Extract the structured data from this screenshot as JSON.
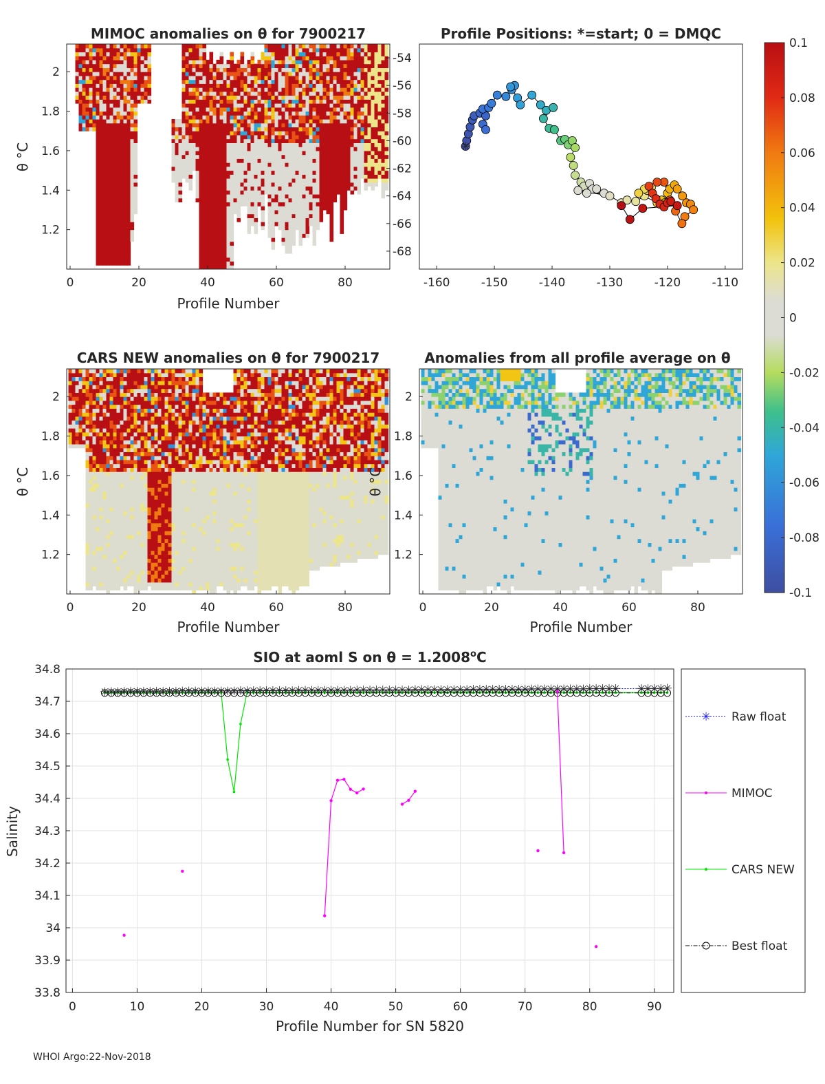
{
  "float_id": "7900217",
  "footer": "WHOI Argo:22-Nov-2018",
  "colorbar": {
    "ticks": [
      "0.1",
      "0.08",
      "0.06",
      "0.04",
      "0.02",
      "0",
      "-0.02",
      "-0.04",
      "-0.06",
      "-0.08",
      "-0.1"
    ],
    "min": -0.1,
    "max": 0.1,
    "colormap": "parula-like (blue-cyan-green-yellow-orange-red, gray center)"
  },
  "panels": {
    "mimoc": {
      "title": "MIMOC anomalies on θ  for 7900217",
      "xlabel": "Profile Number",
      "ylabel": "θ °C",
      "xticks": [
        "0",
        "20",
        "40",
        "60",
        "80"
      ],
      "yticks": [
        "2",
        "1.8",
        "1.6",
        "1.4",
        "1.2"
      ],
      "right_yticks": [
        "-54",
        "-56",
        "-58",
        "-60",
        "-62",
        "-64",
        "-66",
        "-68"
      ]
    },
    "positions": {
      "title": "Profile Positions: *=start; 0 = DMQC",
      "xticks": [
        "-160",
        "-150",
        "-140",
        "-130",
        "-120",
        "-110"
      ]
    },
    "cars": {
      "title": "CARS NEW anomalies on θ for 7900217",
      "xlabel": "Profile Number",
      "ylabel": "θ °C",
      "xticks": [
        "0",
        "20",
        "40",
        "60",
        "80"
      ],
      "yticks": [
        "2",
        "1.8",
        "1.6",
        "1.4",
        "1.2"
      ]
    },
    "average": {
      "title": "Anomalies from all profile average on θ",
      "xlabel": "Profile Number",
      "ylabel": "θ °C",
      "xticks": [
        "0",
        "20",
        "40",
        "60",
        "80"
      ],
      "yticks": [
        "2",
        "1.8",
        "1.6",
        "1.4",
        "1.2"
      ]
    },
    "salinity": {
      "title_prefix": "SIO at aoml S on θ = 1.2008",
      "title_sup": "o",
      "title_suffix": "C",
      "xlabel": "Profile Number for SN 5820",
      "ylabel": "Salinity",
      "xticks": [
        "0",
        "10",
        "20",
        "30",
        "40",
        "50",
        "60",
        "70",
        "80",
        "90"
      ],
      "yticks": [
        "34.8",
        "34.7",
        "34.6",
        "34.5",
        "34.4",
        "34.3",
        "34.2",
        "34.1",
        "34",
        "33.9",
        "33.8"
      ],
      "legend": [
        "Raw float",
        "MIMOC",
        "CARS NEW",
        "Best float"
      ]
    }
  },
  "chart_data": [
    {
      "type": "heatmap",
      "title": "MIMOC anomalies on θ  for 7900217",
      "xlabel": "Profile Number",
      "ylabel": "θ °C",
      "xlim": [
        -1,
        93
      ],
      "ylim": [
        1.0,
        2.14
      ],
      "right_ylim": [
        -69.3,
        -53.0
      ],
      "cmap_range": [
        -0.1,
        0.1
      ]
    },
    {
      "type": "scatter",
      "title": "Profile Positions: *=start; 0 = DMQC",
      "xlim": [
        -163,
        -107
      ],
      "ylim": [
        -69.3,
        -53.0
      ],
      "points": [
        [
          -155,
          -60.4
        ],
        [
          -154.8,
          -60
        ],
        [
          -154.5,
          -59.5
        ],
        [
          -154.2,
          -59
        ],
        [
          -153.8,
          -58.5
        ],
        [
          -153.5,
          -58.2
        ],
        [
          -152.5,
          -58
        ],
        [
          -151.5,
          -58.2
        ],
        [
          -152,
          -58.8
        ],
        [
          -151.5,
          -59.2
        ],
        [
          -152,
          -57.7
        ],
        [
          -151,
          -57.6
        ],
        [
          -150.5,
          -57.3
        ],
        [
          -149.5,
          -56.7
        ],
        [
          -148,
          -56.8
        ],
        [
          -147,
          -56.3
        ],
        [
          -146.5,
          -56
        ],
        [
          -147.2,
          -56.1
        ],
        [
          -146,
          -56.9
        ],
        [
          -145.5,
          -57.4
        ],
        [
          -143.5,
          -56.7
        ],
        [
          -142,
          -57.4
        ],
        [
          -141,
          -57.8
        ],
        [
          -139.8,
          -57.6
        ],
        [
          -141.5,
          -58.4
        ],
        [
          -140.5,
          -59.1
        ],
        [
          -139.6,
          -59.2
        ],
        [
          -138.5,
          -60
        ],
        [
          -137.8,
          -59.9
        ],
        [
          -137.2,
          -60.3
        ],
        [
          -136.5,
          -60
        ],
        [
          -136,
          -60.5
        ],
        [
          -136.8,
          -61.2
        ],
        [
          -136.3,
          -61.8
        ],
        [
          -136,
          -62.5
        ],
        [
          -135,
          -63
        ],
        [
          -134.5,
          -63.3
        ],
        [
          -133.5,
          -63.1
        ],
        [
          -133,
          -63.5
        ],
        [
          -132.3,
          -63.5
        ],
        [
          -131,
          -63.8
        ],
        [
          -134,
          -63.8
        ],
        [
          -135.5,
          -63.6
        ],
        [
          -130,
          -64
        ],
        [
          -128,
          -64.5
        ],
        [
          -127,
          -64.3
        ],
        [
          -125.5,
          -64.4
        ],
        [
          -124,
          -64
        ],
        [
          -123.5,
          -63.6
        ],
        [
          -122.8,
          -63.4
        ],
        [
          -124,
          -63.5
        ],
        [
          -125,
          -63.8
        ],
        [
          -121.8,
          -64.5
        ],
        [
          -121,
          -64.3
        ],
        [
          -120.5,
          -64.5
        ],
        [
          -120,
          -63.8
        ],
        [
          -119.6,
          -63.5
        ],
        [
          -118.8,
          -63.2
        ],
        [
          -118.3,
          -63.5
        ],
        [
          -117.4,
          -64
        ],
        [
          -116.7,
          -64.5
        ],
        [
          -116,
          -64.6
        ],
        [
          -115.5,
          -65
        ],
        [
          -117,
          -65.5
        ],
        [
          -117.5,
          -66
        ],
        [
          -118.6,
          -65.1
        ],
        [
          -119.6,
          -64.3
        ],
        [
          -120.6,
          -63
        ],
        [
          -121.8,
          -63
        ],
        [
          -123.2,
          -63.3
        ],
        [
          -122.6,
          -63.8
        ],
        [
          -122,
          -64.2
        ],
        [
          -121.3,
          -64.6
        ],
        [
          -120.6,
          -64.8
        ],
        [
          -120,
          -64.5
        ],
        [
          -119.4,
          -64.4
        ],
        [
          -118.3,
          -64.7
        ],
        [
          -124.3,
          -64.9
        ],
        [
          -126.5,
          -65.7
        ],
        [
          -128,
          -64.7
        ]
      ]
    },
    {
      "type": "heatmap",
      "title": "CARS NEW anomalies on θ for 7900217",
      "xlabel": "Profile Number",
      "ylabel": "θ °C",
      "xlim": [
        -1,
        93
      ],
      "ylim": [
        1.0,
        2.14
      ],
      "cmap_range": [
        -0.1,
        0.1
      ]
    },
    {
      "type": "heatmap",
      "title": "Anomalies from all profile average on θ",
      "xlabel": "Profile Number",
      "ylabel": "θ °C",
      "xlim": [
        -1,
        93
      ],
      "ylim": [
        1.0,
        2.14
      ],
      "cmap_range": [
        -0.1,
        0.1
      ]
    },
    {
      "type": "line",
      "title": "SIO at aoml S on θ = 1.2008°C",
      "xlabel": "Profile Number for SN 5820",
      "ylabel": "Salinity",
      "xlim": [
        -1,
        93
      ],
      "ylim": [
        33.8,
        34.8
      ],
      "grid": true,
      "legend_position": "right",
      "series": [
        {
          "name": "Raw float",
          "color": "#1a1ae6",
          "marker": "asterisk",
          "line": "dotted",
          "x": [
            5,
            6,
            7,
            8,
            9,
            10,
            11,
            12,
            13,
            14,
            15,
            16,
            17,
            18,
            19,
            20,
            21,
            22,
            23,
            24,
            25,
            26,
            27,
            28,
            29,
            30,
            31,
            32,
            33,
            34,
            35,
            36,
            37,
            38,
            39,
            40,
            41,
            42,
            43,
            44,
            45,
            46,
            47,
            48,
            49,
            50,
            51,
            52,
            53,
            54,
            55,
            56,
            57,
            58,
            59,
            60,
            61,
            62,
            63,
            64,
            65,
            66,
            67,
            68,
            69,
            70,
            71,
            72,
            73,
            74,
            75,
            76,
            77,
            78,
            79,
            80,
            81,
            82,
            83,
            84,
            88,
            89,
            90,
            91,
            92
          ],
          "y_start": 34.73,
          "y_end": 34.74
        },
        {
          "name": "MIMOC",
          "color": "#ff00ff",
          "marker": "dot",
          "line": "solid",
          "segments": [
            [
              [
                8,
                33.977
              ]
            ],
            [
              [
                17,
                34.175
              ]
            ],
            [
              [
                39,
                34.037
              ],
              [
                40,
                34.393
              ],
              [
                41,
                34.456
              ],
              [
                42,
                34.459
              ],
              [
                43,
                34.428
              ],
              [
                44,
                34.417
              ],
              [
                45,
                34.429
              ]
            ],
            [
              [
                51,
                34.382
              ],
              [
                52,
                34.394
              ],
              [
                53,
                34.422
              ]
            ],
            [
              [
                72,
                34.238
              ]
            ],
            [
              [
                75,
                34.73
              ],
              [
                76,
                34.232
              ]
            ],
            [
              [
                81,
                33.942
              ]
            ]
          ]
        },
        {
          "name": "CARS NEW",
          "color": "#00e600",
          "marker": "dot",
          "line": "solid",
          "x": [
            5,
            6,
            7,
            8,
            9,
            10,
            11,
            12,
            13,
            14,
            15,
            16,
            17,
            18,
            19,
            20,
            21,
            22,
            23,
            24,
            25,
            26,
            27,
            28,
            29,
            30,
            31,
            32,
            33,
            34,
            35,
            36,
            37,
            38,
            39,
            40,
            41,
            42,
            43,
            44,
            45,
            46,
            47,
            48,
            49,
            50,
            51,
            52,
            53,
            54,
            55,
            56,
            57,
            58,
            59,
            60,
            61,
            62,
            63,
            64,
            65,
            66,
            67,
            68,
            69,
            70,
            71,
            72,
            73,
            74,
            75,
            76,
            77,
            78,
            79,
            80,
            81,
            82,
            83,
            84,
            88,
            89,
            90,
            91,
            92
          ],
          "y_const": 34.727,
          "overrides": {
            "24": 34.52,
            "25": 34.42,
            "26": 34.63
          }
        },
        {
          "name": "Best float",
          "color": "#000000",
          "marker": "circle",
          "line": "dash-dot",
          "x": [
            5,
            6,
            7,
            8,
            9,
            10,
            11,
            12,
            13,
            14,
            15,
            16,
            17,
            18,
            19,
            20,
            21,
            22,
            23,
            24,
            25,
            26,
            27,
            28,
            29,
            30,
            31,
            32,
            33,
            34,
            35,
            36,
            37,
            38,
            39,
            40,
            41,
            42,
            43,
            44,
            45,
            46,
            47,
            48,
            49,
            50,
            51,
            52,
            53,
            54,
            55,
            56,
            57,
            58,
            59,
            60,
            61,
            62,
            63,
            64,
            65,
            66,
            67,
            68,
            69,
            70,
            71,
            72,
            73,
            74,
            75,
            76,
            77,
            78,
            79,
            80,
            81,
            82,
            83,
            84,
            88,
            89,
            90,
            91,
            92
          ],
          "y_const": 34.726
        }
      ]
    }
  ]
}
